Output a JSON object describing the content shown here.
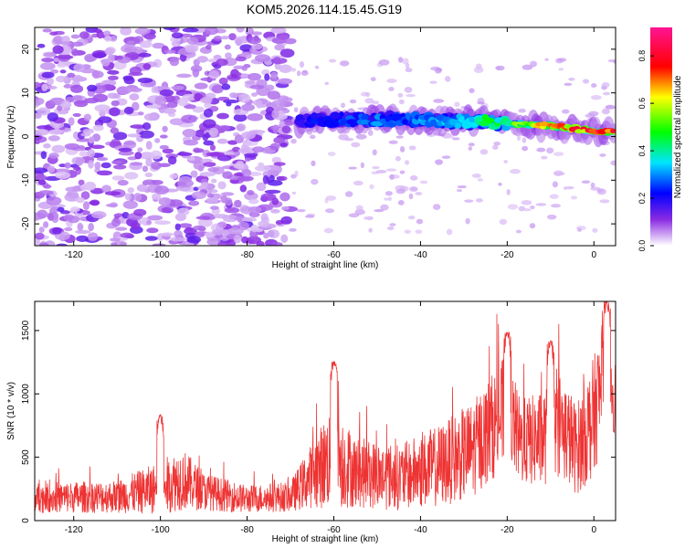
{
  "title": "KOM5.2026.114.15.45.G19",
  "colors": {
    "series": "#ee3333",
    "spec_base": "#8833ee"
  },
  "chart_data": [
    {
      "type": "heatmap",
      "xlabel": "Height of straight line (km)",
      "ylabel": "Frequency (Hz)",
      "xlim": [
        -129,
        5
      ],
      "ylim": [
        -25,
        25
      ],
      "xticks": [
        -120,
        -100,
        -80,
        -60,
        -40,
        -20,
        0
      ],
      "xtick_labels": [
        "-120",
        "-100",
        "-80",
        "-60",
        "-40",
        "-20",
        "0"
      ],
      "yticks": [
        -20,
        -10,
        0,
        10,
        20
      ],
      "ytick_labels": [
        "-20",
        "-10",
        "0",
        "10",
        "20"
      ],
      "colorbar": {
        "label": "Normalized spectral amplitude",
        "range": [
          0,
          0.92
        ],
        "ticks": [
          0.0,
          0.2,
          0.4,
          0.6,
          0.8
        ],
        "tick_labels": [
          "0.0",
          "0.2",
          "0.4",
          "0.6",
          "0.8"
        ]
      },
      "noise_region_x": [
        -129,
        -70
      ],
      "signal_trace": [
        {
          "x": -68,
          "freq": 3.5,
          "amp": 0.22
        },
        {
          "x": -60,
          "freq": 3.8,
          "amp": 0.26
        },
        {
          "x": -50,
          "freq": 4.0,
          "amp": 0.3
        },
        {
          "x": -40,
          "freq": 3.9,
          "amp": 0.32
        },
        {
          "x": -30,
          "freq": 3.5,
          "amp": 0.4
        },
        {
          "x": -20,
          "freq": 3.0,
          "amp": 0.5
        },
        {
          "x": -10,
          "freq": 2.5,
          "amp": 0.7
        },
        {
          "x": 0,
          "freq": 1.2,
          "amp": 0.85
        },
        {
          "x": 5,
          "freq": 1.0,
          "amp": 0.9
        }
      ]
    },
    {
      "type": "line",
      "series_name": "SNR",
      "xlabel": "Height of straight line (km)",
      "ylabel": "SNR (10 * v/v)",
      "xlim": [
        -129,
        5
      ],
      "ylim": [
        0,
        1730
      ],
      "xticks": [
        -120,
        -100,
        -80,
        -60,
        -40,
        -20,
        0
      ],
      "xtick_labels": [
        "-120",
        "-100",
        "-80",
        "-60",
        "-40",
        "-20",
        "0"
      ],
      "yticks": [
        0,
        500,
        1000,
        1500
      ],
      "ytick_labels": [
        "0",
        "500",
        "1000",
        "1500"
      ],
      "envelope": [
        {
          "x": -129,
          "mean": 180,
          "spread": 120
        },
        {
          "x": -110,
          "mean": 190,
          "spread": 130
        },
        {
          "x": -100,
          "mean": 260,
          "spread": 210
        },
        {
          "x": -95,
          "mean": 330,
          "spread": 250
        },
        {
          "x": -90,
          "mean": 230,
          "spread": 150
        },
        {
          "x": -80,
          "mean": 170,
          "spread": 110
        },
        {
          "x": -70,
          "mean": 190,
          "spread": 120
        },
        {
          "x": -65,
          "mean": 360,
          "spread": 260
        },
        {
          "x": -60,
          "mean": 520,
          "spread": 430
        },
        {
          "x": -55,
          "mean": 380,
          "spread": 280
        },
        {
          "x": -45,
          "mean": 340,
          "spread": 260
        },
        {
          "x": -35,
          "mean": 440,
          "spread": 330
        },
        {
          "x": -28,
          "mean": 560,
          "spread": 380
        },
        {
          "x": -20,
          "mean": 880,
          "spread": 450
        },
        {
          "x": -17,
          "mean": 620,
          "spread": 340
        },
        {
          "x": -12,
          "mean": 640,
          "spread": 380
        },
        {
          "x": -8,
          "mean": 780,
          "spread": 430
        },
        {
          "x": -4,
          "mean": 560,
          "spread": 360
        },
        {
          "x": 0,
          "mean": 820,
          "spread": 480
        },
        {
          "x": 3,
          "mean": 1250,
          "spread": 420
        },
        {
          "x": 5,
          "mean": 950,
          "spread": 300
        }
      ],
      "peaks": [
        {
          "x": -100,
          "y": 840
        },
        {
          "x": -60,
          "y": 1260
        },
        {
          "x": -20,
          "y": 1490
        },
        {
          "x": -10,
          "y": 1420
        },
        {
          "x": 3,
          "y": 1730
        }
      ]
    }
  ]
}
